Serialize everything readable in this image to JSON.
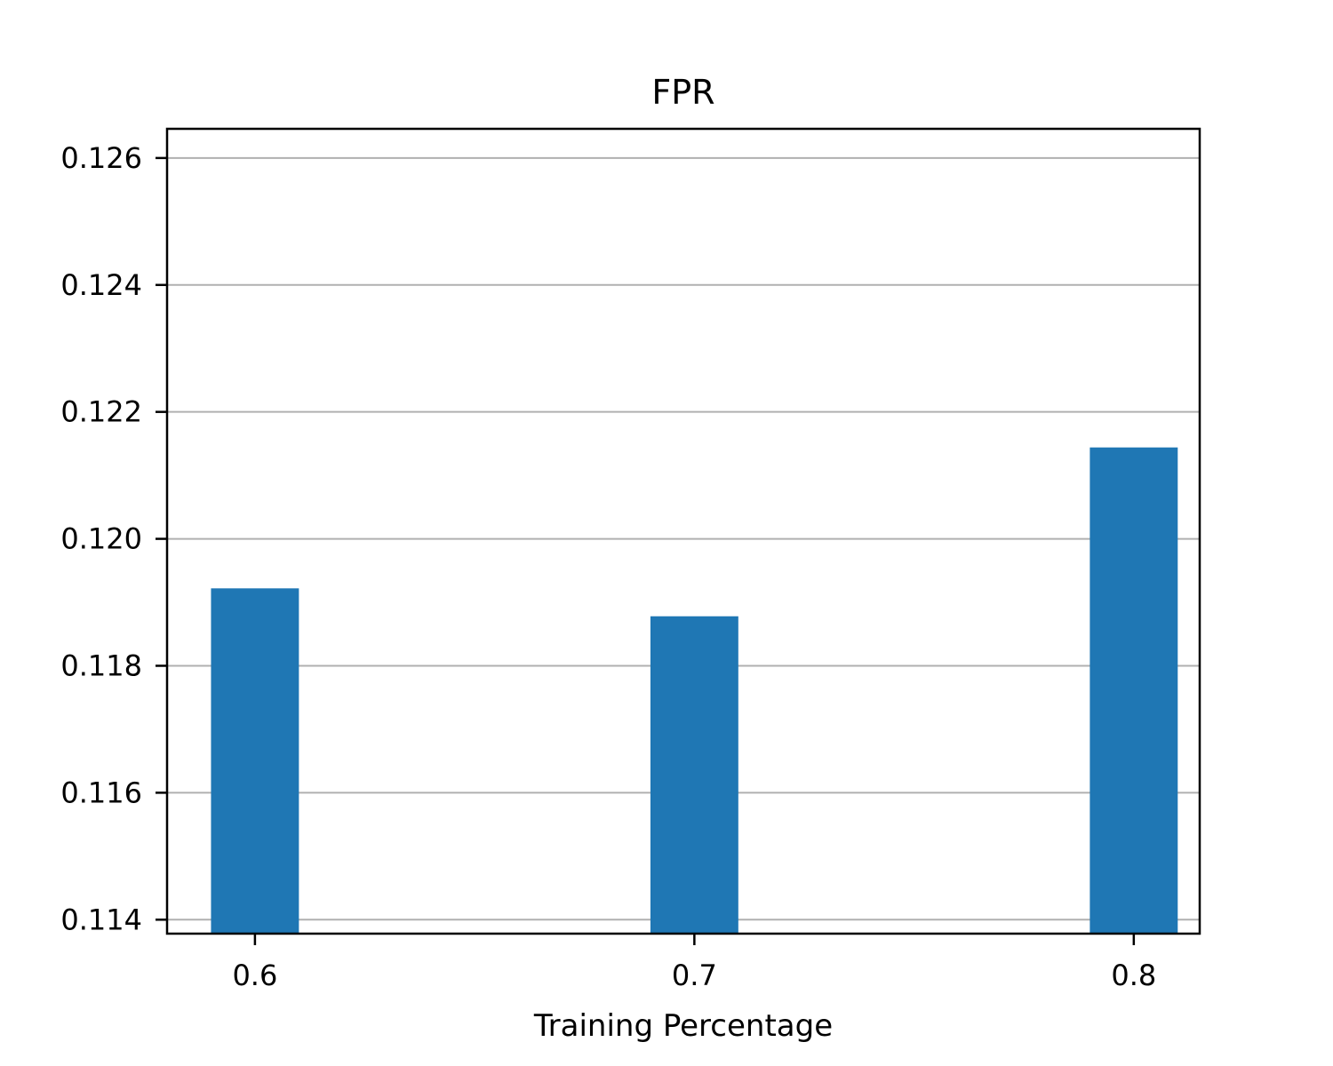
{
  "chart_data": {
    "type": "bar",
    "title": "FPR",
    "xlabel": "Training Percentage",
    "ylabel": "",
    "categories": [
      "0.6",
      "0.7",
      "0.8"
    ],
    "values": [
      0.11922,
      0.11878,
      0.12144
    ],
    "ylim": [
      0.11378,
      0.12646
    ],
    "yticks": [
      "0.114",
      "0.116",
      "0.118",
      "0.120",
      "0.122",
      "0.124",
      "0.126"
    ],
    "ytick_values": [
      0.114,
      0.116,
      0.118,
      0.12,
      0.122,
      0.124,
      0.126
    ],
    "grid": "y",
    "legend": "none",
    "bar_color": "#1f77b4"
  }
}
